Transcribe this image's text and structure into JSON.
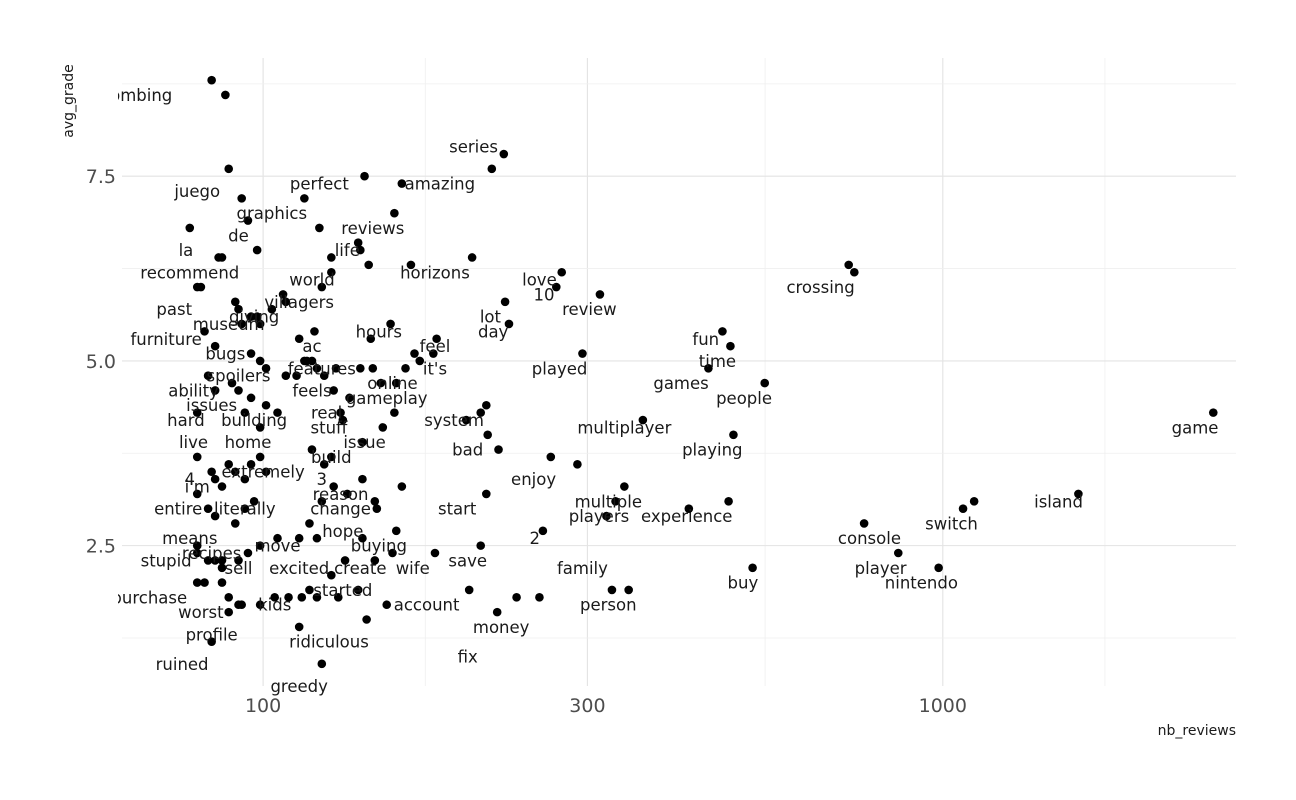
{
  "chart_data": {
    "type": "scatter",
    "xlabel": "nb_reviews",
    "ylabel": "avg_grade",
    "x_scale": "log10",
    "xlim": [
      62,
      2700
    ],
    "ylim": [
      0.6,
      9.1
    ],
    "x_ticks": [
      100,
      300,
      1000
    ],
    "x_tick_labels": [
      "100",
      "300",
      "1000"
    ],
    "y_ticks": [
      2.5,
      5.0,
      7.5
    ],
    "y_tick_labels": [
      "2.5",
      "5.0",
      "7.5"
    ],
    "grid": true,
    "legend": "none",
    "points": [
      {
        "x": 84,
        "y": 8.8
      },
      {
        "x": 88,
        "y": 8.6
      },
      {
        "x": 89,
        "y": 7.6
      },
      {
        "x": 93,
        "y": 7.2
      },
      {
        "x": 95,
        "y": 6.9
      },
      {
        "x": 98,
        "y": 6.5
      },
      {
        "x": 78,
        "y": 6.8
      },
      {
        "x": 81,
        "y": 6.0
      },
      {
        "x": 80,
        "y": 6.0
      },
      {
        "x": 86,
        "y": 6.4
      },
      {
        "x": 87,
        "y": 6.4
      },
      {
        "x": 91,
        "y": 5.8
      },
      {
        "x": 92,
        "y": 5.7
      },
      {
        "x": 96,
        "y": 5.6
      },
      {
        "x": 98,
        "y": 5.6
      },
      {
        "x": 99,
        "y": 5.5
      },
      {
        "x": 103,
        "y": 5.7
      },
      {
        "x": 107,
        "y": 5.9
      },
      {
        "x": 108,
        "y": 5.8
      },
      {
        "x": 82,
        "y": 5.4
      },
      {
        "x": 93,
        "y": 5.5
      },
      {
        "x": 85,
        "y": 5.2
      },
      {
        "x": 96,
        "y": 5.1
      },
      {
        "x": 99,
        "y": 5.0
      },
      {
        "x": 101,
        "y": 4.9
      },
      {
        "x": 83,
        "y": 4.8
      },
      {
        "x": 90,
        "y": 4.7
      },
      {
        "x": 85,
        "y": 4.6
      },
      {
        "x": 92,
        "y": 4.6
      },
      {
        "x": 96,
        "y": 4.5
      },
      {
        "x": 101,
        "y": 4.4
      },
      {
        "x": 94,
        "y": 4.3
      },
      {
        "x": 80,
        "y": 4.3
      },
      {
        "x": 99,
        "y": 4.1
      },
      {
        "x": 105,
        "y": 4.3
      },
      {
        "x": 108,
        "y": 4.8
      },
      {
        "x": 112,
        "y": 4.8
      },
      {
        "x": 116,
        "y": 5.0
      },
      {
        "x": 113,
        "y": 5.3
      },
      {
        "x": 119,
        "y": 5.4
      },
      {
        "x": 115,
        "y": 5.0
      },
      {
        "x": 120,
        "y": 4.9
      },
      {
        "x": 123,
        "y": 4.8
      },
      {
        "x": 128,
        "y": 4.9
      },
      {
        "x": 127,
        "y": 4.6
      },
      {
        "x": 130,
        "y": 4.3
      },
      {
        "x": 131,
        "y": 4.2
      },
      {
        "x": 134,
        "y": 4.5
      },
      {
        "x": 139,
        "y": 4.9
      },
      {
        "x": 145,
        "y": 4.9
      },
      {
        "x": 149,
        "y": 4.7
      },
      {
        "x": 157,
        "y": 4.7
      },
      {
        "x": 162,
        "y": 4.9
      },
      {
        "x": 167,
        "y": 5.1
      },
      {
        "x": 170,
        "y": 5.0
      },
      {
        "x": 178,
        "y": 5.1
      },
      {
        "x": 180,
        "y": 5.3
      },
      {
        "x": 154,
        "y": 5.5
      },
      {
        "x": 144,
        "y": 5.3
      },
      {
        "x": 118,
        "y": 5.0
      },
      {
        "x": 122,
        "y": 6.0
      },
      {
        "x": 126,
        "y": 6.2
      },
      {
        "x": 126,
        "y": 6.4
      },
      {
        "x": 138,
        "y": 6.6
      },
      {
        "x": 139,
        "y": 6.5
      },
      {
        "x": 143,
        "y": 6.3
      },
      {
        "x": 156,
        "y": 7.0
      },
      {
        "x": 141,
        "y": 7.5
      },
      {
        "x": 121,
        "y": 6.8
      },
      {
        "x": 115,
        "y": 7.2
      },
      {
        "x": 160,
        "y": 7.4
      },
      {
        "x": 165,
        "y": 6.3
      },
      {
        "x": 203,
        "y": 6.4
      },
      {
        "x": 217,
        "y": 7.6
      },
      {
        "x": 226,
        "y": 7.8
      },
      {
        "x": 227,
        "y": 5.8
      },
      {
        "x": 230,
        "y": 5.5
      },
      {
        "x": 270,
        "y": 6.0
      },
      {
        "x": 275,
        "y": 6.2
      },
      {
        "x": 313,
        "y": 5.9
      },
      {
        "x": 295,
        "y": 5.1
      },
      {
        "x": 209,
        "y": 4.3
      },
      {
        "x": 213,
        "y": 4.4
      },
      {
        "x": 199,
        "y": 4.2
      },
      {
        "x": 156,
        "y": 4.3
      },
      {
        "x": 150,
        "y": 4.1
      },
      {
        "x": 140,
        "y": 3.9
      },
      {
        "x": 126,
        "y": 3.7
      },
      {
        "x": 123,
        "y": 3.6
      },
      {
        "x": 118,
        "y": 3.8
      },
      {
        "x": 214,
        "y": 4.0
      },
      {
        "x": 222,
        "y": 3.8
      },
      {
        "x": 265,
        "y": 3.7
      },
      {
        "x": 290,
        "y": 3.6
      },
      {
        "x": 340,
        "y": 3.3
      },
      {
        "x": 330,
        "y": 3.1
      },
      {
        "x": 320,
        "y": 2.9
      },
      {
        "x": 362,
        "y": 4.2
      },
      {
        "x": 423,
        "y": 3.0
      },
      {
        "x": 452,
        "y": 4.9
      },
      {
        "x": 474,
        "y": 5.4
      },
      {
        "x": 487,
        "y": 5.2
      },
      {
        "x": 492,
        "y": 4.0
      },
      {
        "x": 484,
        "y": 3.1
      },
      {
        "x": 525,
        "y": 2.2
      },
      {
        "x": 547,
        "y": 4.7
      },
      {
        "x": 727,
        "y": 6.3
      },
      {
        "x": 741,
        "y": 6.2
      },
      {
        "x": 766,
        "y": 2.8
      },
      {
        "x": 860,
        "y": 2.4
      },
      {
        "x": 986,
        "y": 2.2
      },
      {
        "x": 1071,
        "y": 3.0
      },
      {
        "x": 1112,
        "y": 3.1
      },
      {
        "x": 1583,
        "y": 3.2
      },
      {
        "x": 2500,
        "y": 4.3
      },
      {
        "x": 258,
        "y": 2.7
      },
      {
        "x": 236,
        "y": 1.8
      },
      {
        "x": 255,
        "y": 1.8
      },
      {
        "x": 221,
        "y": 1.6
      },
      {
        "x": 201,
        "y": 1.9
      },
      {
        "x": 209,
        "y": 2.5
      },
      {
        "x": 326,
        "y": 1.9
      },
      {
        "x": 345,
        "y": 1.9
      },
      {
        "x": 179,
        "y": 2.4
      },
      {
        "x": 155,
        "y": 2.4
      },
      {
        "x": 157,
        "y": 2.7
      },
      {
        "x": 146,
        "y": 2.3
      },
      {
        "x": 140,
        "y": 2.6
      },
      {
        "x": 132,
        "y": 2.3
      },
      {
        "x": 126,
        "y": 2.1
      },
      {
        "x": 129,
        "y": 1.8
      },
      {
        "x": 138,
        "y": 1.9
      },
      {
        "x": 152,
        "y": 1.7
      },
      {
        "x": 117,
        "y": 2.8
      },
      {
        "x": 120,
        "y": 2.6
      },
      {
        "x": 113,
        "y": 2.6
      },
      {
        "x": 105,
        "y": 2.6
      },
      {
        "x": 99,
        "y": 2.5
      },
      {
        "x": 95,
        "y": 2.4
      },
      {
        "x": 92,
        "y": 2.3
      },
      {
        "x": 91,
        "y": 2.8
      },
      {
        "x": 87,
        "y": 2.3
      },
      {
        "x": 85,
        "y": 2.3
      },
      {
        "x": 83,
        "y": 2.3
      },
      {
        "x": 80,
        "y": 2.4
      },
      {
        "x": 80,
        "y": 2.5
      },
      {
        "x": 87,
        "y": 2.2
      },
      {
        "x": 82,
        "y": 2.0
      },
      {
        "x": 87,
        "y": 2.0
      },
      {
        "x": 80,
        "y": 2.0
      },
      {
        "x": 89,
        "y": 1.8
      },
      {
        "x": 93,
        "y": 1.7
      },
      {
        "x": 99,
        "y": 1.7
      },
      {
        "x": 104,
        "y": 1.8
      },
      {
        "x": 109,
        "y": 1.8
      },
      {
        "x": 114,
        "y": 1.8
      },
      {
        "x": 117,
        "y": 1.9
      },
      {
        "x": 120,
        "y": 1.8
      },
      {
        "x": 113,
        "y": 1.4
      },
      {
        "x": 122,
        "y": 0.9
      },
      {
        "x": 142,
        "y": 1.5
      },
      {
        "x": 84,
        "y": 1.2
      },
      {
        "x": 89,
        "y": 1.6
      },
      {
        "x": 92,
        "y": 1.7
      },
      {
        "x": 80,
        "y": 3.7
      },
      {
        "x": 84,
        "y": 3.5
      },
      {
        "x": 85,
        "y": 3.4
      },
      {
        "x": 87,
        "y": 3.3
      },
      {
        "x": 89,
        "y": 3.6
      },
      {
        "x": 91,
        "y": 3.5
      },
      {
        "x": 94,
        "y": 3.4
      },
      {
        "x": 96,
        "y": 3.6
      },
      {
        "x": 99,
        "y": 3.7
      },
      {
        "x": 101,
        "y": 3.5
      },
      {
        "x": 80,
        "y": 3.2
      },
      {
        "x": 83,
        "y": 3.0
      },
      {
        "x": 85,
        "y": 2.9
      },
      {
        "x": 94,
        "y": 3.0
      },
      {
        "x": 97,
        "y": 3.1
      },
      {
        "x": 122,
        "y": 3.1
      },
      {
        "x": 127,
        "y": 3.3
      },
      {
        "x": 133,
        "y": 3.2
      },
      {
        "x": 140,
        "y": 3.4
      },
      {
        "x": 146,
        "y": 3.1
      },
      {
        "x": 147,
        "y": 3.0
      },
      {
        "x": 160,
        "y": 3.3
      },
      {
        "x": 213,
        "y": 3.2
      }
    ],
    "annotations": [
      {
        "text": "bombing",
        "x": 65,
        "y": 8.6
      },
      {
        "text": "juego",
        "x": 80,
        "y": 7.3
      },
      {
        "text": "graphics",
        "x": 103,
        "y": 7.0
      },
      {
        "text": "perfect",
        "x": 121,
        "y": 7.4
      },
      {
        "text": "amazing",
        "x": 182,
        "y": 7.4
      },
      {
        "text": "series",
        "x": 204,
        "y": 7.9
      },
      {
        "text": "de",
        "x": 92,
        "y": 6.7
      },
      {
        "text": "reviews",
        "x": 145,
        "y": 6.8
      },
      {
        "text": "la",
        "x": 77,
        "y": 6.5
      },
      {
        "text": "life",
        "x": 133,
        "y": 6.5
      },
      {
        "text": "recommend",
        "x": 78,
        "y": 6.2
      },
      {
        "text": "horizons",
        "x": 179,
        "y": 6.2
      },
      {
        "text": "love",
        "x": 255,
        "y": 6.1
      },
      {
        "text": "crossing",
        "x": 661,
        "y": 6.0
      },
      {
        "text": "world",
        "x": 118,
        "y": 6.1
      },
      {
        "text": "villagers",
        "x": 113,
        "y": 5.8
      },
      {
        "text": "past",
        "x": 74,
        "y": 5.7
      },
      {
        "text": "giving",
        "x": 97,
        "y": 5.6
      },
      {
        "text": "10",
        "x": 259,
        "y": 5.9
      },
      {
        "text": "review",
        "x": 302,
        "y": 5.7
      },
      {
        "text": "lot",
        "x": 216,
        "y": 5.6
      },
      {
        "text": "museum",
        "x": 89,
        "y": 5.5
      },
      {
        "text": "ac",
        "x": 118,
        "y": 5.2
      },
      {
        "text": "hours",
        "x": 148,
        "y": 5.4
      },
      {
        "text": "day",
        "x": 218,
        "y": 5.4
      },
      {
        "text": "furniture",
        "x": 72,
        "y": 5.3
      },
      {
        "text": "feel",
        "x": 179,
        "y": 5.2
      },
      {
        "text": "fun",
        "x": 448,
        "y": 5.3
      },
      {
        "text": "bugs",
        "x": 88,
        "y": 5.1
      },
      {
        "text": "time",
        "x": 466,
        "y": 5.0
      },
      {
        "text": "features",
        "x": 122,
        "y": 4.9
      },
      {
        "text": "it's",
        "x": 179,
        "y": 4.9
      },
      {
        "text": "played",
        "x": 273,
        "y": 4.9
      },
      {
        "text": "spoilers",
        "x": 92,
        "y": 4.8
      },
      {
        "text": "online",
        "x": 155,
        "y": 4.7
      },
      {
        "text": "games",
        "x": 412,
        "y": 4.7
      },
      {
        "text": "ability",
        "x": 79,
        "y": 4.6
      },
      {
        "text": "feels",
        "x": 118,
        "y": 4.6
      },
      {
        "text": "gameplay",
        "x": 152,
        "y": 4.5
      },
      {
        "text": "people",
        "x": 510,
        "y": 4.5
      },
      {
        "text": "issues",
        "x": 84,
        "y": 4.4
      },
      {
        "text": "real",
        "x": 124,
        "y": 4.3
      },
      {
        "text": "building",
        "x": 97,
        "y": 4.2
      },
      {
        "text": "stuff",
        "x": 125,
        "y": 4.1
      },
      {
        "text": "system",
        "x": 191,
        "y": 4.2
      },
      {
        "text": "hard",
        "x": 77,
        "y": 4.2
      },
      {
        "text": "multiplayer",
        "x": 340,
        "y": 4.1
      },
      {
        "text": "game",
        "x": 2350,
        "y": 4.1
      },
      {
        "text": "live",
        "x": 79,
        "y": 3.9
      },
      {
        "text": "home",
        "x": 95,
        "y": 3.9
      },
      {
        "text": "issue",
        "x": 141,
        "y": 3.9
      },
      {
        "text": "bad",
        "x": 200,
        "y": 3.8
      },
      {
        "text": "playing",
        "x": 458,
        "y": 3.8
      },
      {
        "text": "build",
        "x": 126,
        "y": 3.7
      },
      {
        "text": "extremely",
        "x": 100,
        "y": 3.5
      },
      {
        "text": "4",
        "x": 78,
        "y": 3.4
      },
      {
        "text": "3",
        "x": 122,
        "y": 3.4
      },
      {
        "text": "enjoy",
        "x": 250,
        "y": 3.4
      },
      {
        "text": "i'm",
        "x": 80,
        "y": 3.3
      },
      {
        "text": "reason",
        "x": 130,
        "y": 3.2
      },
      {
        "text": "multiple",
        "x": 322,
        "y": 3.1
      },
      {
        "text": "island",
        "x": 1480,
        "y": 3.1
      },
      {
        "text": "entire",
        "x": 75,
        "y": 3.0
      },
      {
        "text": "literally",
        "x": 94,
        "y": 3.0
      },
      {
        "text": "change",
        "x": 130,
        "y": 3.0
      },
      {
        "text": "start",
        "x": 193,
        "y": 3.0
      },
      {
        "text": "players",
        "x": 312,
        "y": 2.9
      },
      {
        "text": "experience",
        "x": 420,
        "y": 2.9
      },
      {
        "text": "switch",
        "x": 1030,
        "y": 2.8
      },
      {
        "text": "hope",
        "x": 131,
        "y": 2.7
      },
      {
        "text": "means",
        "x": 78,
        "y": 2.6
      },
      {
        "text": "console",
        "x": 780,
        "y": 2.6
      },
      {
        "text": "2",
        "x": 251,
        "y": 2.6
      },
      {
        "text": "move",
        "x": 105,
        "y": 2.5
      },
      {
        "text": "buying",
        "x": 148,
        "y": 2.5
      },
      {
        "text": "recipes",
        "x": 84,
        "y": 2.4
      },
      {
        "text": "save",
        "x": 200,
        "y": 2.3
      },
      {
        "text": "stupid",
        "x": 72,
        "y": 2.3
      },
      {
        "text": "sell",
        "x": 92,
        "y": 2.2
      },
      {
        "text": "excited",
        "x": 113,
        "y": 2.2
      },
      {
        "text": "create",
        "x": 139,
        "y": 2.2
      },
      {
        "text": "wife",
        "x": 166,
        "y": 2.2
      },
      {
        "text": "family",
        "x": 295,
        "y": 2.2
      },
      {
        "text": "player",
        "x": 810,
        "y": 2.2
      },
      {
        "text": "buy",
        "x": 508,
        "y": 2.0
      },
      {
        "text": "nintendo",
        "x": 930,
        "y": 2.0
      },
      {
        "text": "started",
        "x": 131,
        "y": 1.9
      },
      {
        "text": "purchase",
        "x": 68,
        "y": 1.8
      },
      {
        "text": "account",
        "x": 174,
        "y": 1.7
      },
      {
        "text": "person",
        "x": 322,
        "y": 1.7
      },
      {
        "text": "worst",
        "x": 81,
        "y": 1.6
      },
      {
        "text": "kids",
        "x": 104,
        "y": 1.7
      },
      {
        "text": "profile",
        "x": 84,
        "y": 1.3
      },
      {
        "text": "money",
        "x": 224,
        "y": 1.4
      },
      {
        "text": "ridiculous",
        "x": 125,
        "y": 1.2
      },
      {
        "text": "fix",
        "x": 200,
        "y": 1.0
      },
      {
        "text": "ruined",
        "x": 76,
        "y": 0.9
      },
      {
        "text": "greedy",
        "x": 113,
        "y": 0.6
      }
    ]
  }
}
